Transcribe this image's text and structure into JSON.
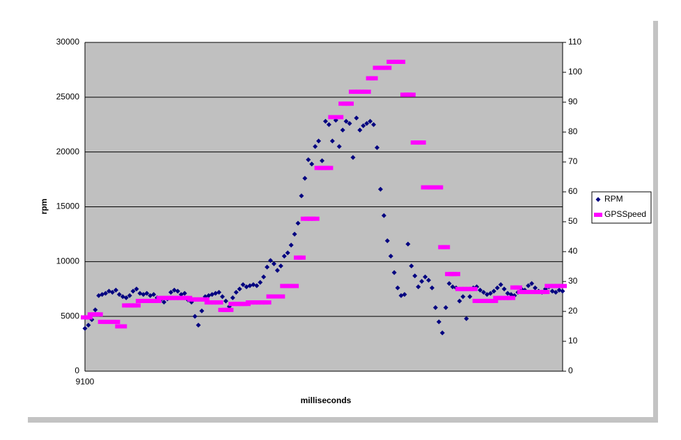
{
  "chart_data": {
    "type": "scatter-line",
    "x_label": "milliseconds",
    "y_label": "rpm",
    "categories": [
      "9100",
      null,
      null,
      null,
      null,
      null,
      null,
      null,
      null,
      null,
      null,
      null,
      null,
      null,
      null,
      null,
      null,
      null,
      null,
      null,
      null,
      null,
      null,
      null,
      null,
      null,
      null,
      null,
      null,
      null,
      null,
      null,
      null,
      null,
      null,
      null,
      null,
      null,
      null,
      null,
      null,
      null,
      null,
      null,
      null,
      null,
      null,
      null,
      null,
      null,
      null,
      null,
      null,
      null,
      null,
      null,
      null,
      null,
      null,
      null,
      null,
      null,
      null,
      null,
      null,
      null,
      null,
      null,
      null,
      null,
      null,
      null,
      null,
      null,
      null,
      null,
      null,
      null,
      null,
      null,
      null,
      null,
      null,
      null,
      null,
      null,
      null,
      null,
      null,
      null,
      null,
      null,
      null,
      null,
      null,
      null,
      null,
      null,
      null,
      null,
      null,
      null,
      null,
      null,
      null,
      null,
      null,
      null,
      null,
      null,
      null,
      null,
      null,
      null,
      null,
      null,
      null,
      null,
      null,
      null,
      null,
      null,
      null,
      null,
      null,
      null,
      null,
      null,
      null,
      null,
      null,
      null,
      null,
      null,
      null,
      null,
      null,
      null,
      null,
      null
    ],
    "series": [
      {
        "name": "RPM",
        "color": "#000080",
        "marker": "diamond",
        "values": [
          3900,
          4200,
          4700,
          5600,
          6900,
          7000,
          7100,
          7300,
          7200,
          7400,
          7000,
          6800,
          6700,
          6900,
          7300,
          7500,
          7100,
          7000,
          7100,
          6900,
          7000,
          6700,
          6500,
          6300,
          6600,
          7200,
          7400,
          7300,
          7000,
          7100,
          6500,
          6300,
          5000,
          4200,
          5500,
          6800,
          6900,
          7000,
          7100,
          7200,
          6800,
          6400,
          5900,
          6700,
          7200,
          7500,
          7900,
          7700,
          7800,
          7900,
          7800,
          8100,
          8600,
          9500,
          10100,
          9800,
          9200,
          9600,
          10500,
          10800,
          11500,
          12500,
          13500,
          16000,
          17600,
          19300,
          18900,
          20500,
          21000,
          19200,
          22800,
          22500,
          21000,
          22900,
          20500,
          22000,
          22800,
          22600,
          19500,
          23100,
          22000,
          22400,
          22600,
          22800,
          22500,
          20400,
          16600,
          14200,
          11900,
          10500,
          9000,
          7600,
          6900,
          7000,
          11600,
          9600,
          8700,
          7700,
          8200,
          8600,
          8300,
          7600,
          5800,
          4500,
          3500,
          5800,
          8000,
          7700,
          7600,
          6400,
          6800,
          4800,
          6800,
          7600,
          7700,
          7400,
          7200,
          7000,
          7100,
          7300,
          7600,
          7900,
          7500,
          7100,
          7000,
          6900,
          7200,
          7500,
          7400,
          7800,
          8000,
          7600,
          7300,
          7200,
          7500,
          7700,
          7300,
          7200,
          7400,
          7300
        ]
      },
      {
        "name": "GPSSpeed",
        "color": "#ff00ff",
        "marker": "dash",
        "axis": "y2",
        "values": [
          18,
          18,
          19,
          19,
          19,
          16.5,
          16.5,
          16.5,
          16.5,
          16.5,
          15,
          15,
          22,
          22,
          22,
          22,
          23.5,
          23.5,
          23.5,
          23.5,
          23.5,
          23.5,
          24.5,
          24.5,
          24.5,
          24.5,
          24.5,
          24.5,
          24.5,
          24.5,
          24.5,
          24,
          24,
          24,
          24,
          24,
          23,
          23,
          23,
          23,
          20.5,
          20.5,
          20.5,
          22.5,
          22.5,
          22.5,
          22.5,
          22.5,
          23,
          23,
          23,
          23,
          23,
          23,
          25,
          25,
          25,
          25,
          28.5,
          28.5,
          28.5,
          28.5,
          38,
          38,
          51,
          51,
          51,
          51,
          68,
          68,
          68,
          68,
          85,
          85,
          85,
          89.5,
          89.5,
          89.5,
          93.5,
          93.5,
          93.5,
          93.5,
          93.5,
          98,
          98,
          101.5,
          101.5,
          101.5,
          101.5,
          103.5,
          103.5,
          103.5,
          103.5,
          92.5,
          92.5,
          92.5,
          76.5,
          76.5,
          76.5,
          61.5,
          61.5,
          61.5,
          61.5,
          61.5,
          41.5,
          41.5,
          32.5,
          32.5,
          32.5,
          27.5,
          27.5,
          27.5,
          27.5,
          27.5,
          23.5,
          23.5,
          23.5,
          23.5,
          23.5,
          23.5,
          24.5,
          24.5,
          24.5,
          24.5,
          24.5,
          28,
          28,
          26.5,
          26.5,
          26.5,
          26.5,
          26.5,
          26.5,
          26.5,
          26.5,
          28.5,
          28.5,
          28.5,
          28.5,
          28.5
        ]
      }
    ],
    "ylim": [
      0,
      30000
    ],
    "yticks": [
      0,
      5000,
      10000,
      15000,
      20000,
      25000,
      30000
    ],
    "y2lim": [
      0,
      110
    ],
    "y2ticks": [
      0,
      10,
      20,
      30,
      40,
      50,
      60,
      70,
      80,
      90,
      100,
      110
    ],
    "grid": true,
    "legend": "right",
    "plot_background": "#c0c0c0"
  }
}
